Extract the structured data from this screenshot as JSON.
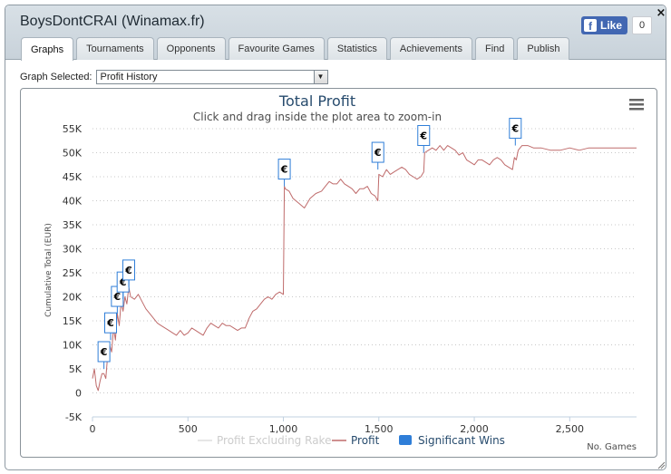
{
  "window": {
    "title": "BoysDontCRAI (Winamax.fr)",
    "close_symbol": "×"
  },
  "facebook": {
    "like_label": "Like",
    "like_count": "0",
    "logo_letter": "f"
  },
  "tabs": [
    {
      "label": "Graphs",
      "active": true
    },
    {
      "label": "Tournaments",
      "active": false
    },
    {
      "label": "Opponents",
      "active": false
    },
    {
      "label": "Favourite Games",
      "active": false
    },
    {
      "label": "Statistics",
      "active": false
    },
    {
      "label": "Achievements",
      "active": false
    },
    {
      "label": "Find",
      "active": false
    },
    {
      "label": "Publish",
      "active": false
    }
  ],
  "graph_selector": {
    "label": "Graph Selected:",
    "value": "Profit History"
  },
  "chart_data": {
    "type": "line",
    "title": "Total Profit",
    "subtitle": "Click and drag inside the plot area to zoom-in",
    "ylabel": "Cumulative Total (EUR)",
    "xlabel": "No. Games",
    "xlim": [
      0,
      2850
    ],
    "ylim": [
      -5000,
      55000
    ],
    "x_ticks": [
      "0",
      "500",
      "1,000",
      "1,500",
      "2,000",
      "2,500"
    ],
    "y_ticks": [
      "-5K",
      "0",
      "5K",
      "10K",
      "15K",
      "20K",
      "25K",
      "30K",
      "35K",
      "40K",
      "45K",
      "50K",
      "55K"
    ],
    "grid": true,
    "legend_position": "bottom",
    "legend": [
      {
        "name": "Profit Excluding Rake",
        "color": "#dddddd"
      },
      {
        "name": "Profit",
        "color": "#bf6b6b"
      },
      {
        "name": "Significant Wins",
        "color": "#2f7ed8"
      }
    ],
    "series": [
      {
        "name": "Profit",
        "color": "#bf6b6b",
        "x": [
          0,
          10,
          20,
          30,
          40,
          50,
          60,
          70,
          80,
          90,
          100,
          110,
          120,
          130,
          140,
          150,
          160,
          170,
          180,
          190,
          200,
          220,
          240,
          260,
          280,
          300,
          320,
          340,
          360,
          380,
          400,
          420,
          440,
          460,
          480,
          500,
          520,
          540,
          560,
          580,
          600,
          620,
          640,
          660,
          680,
          700,
          720,
          740,
          760,
          780,
          800,
          820,
          840,
          860,
          880,
          900,
          920,
          940,
          960,
          980,
          1000,
          1005,
          1010,
          1030,
          1050,
          1080,
          1110,
          1140,
          1170,
          1200,
          1220,
          1240,
          1260,
          1280,
          1300,
          1320,
          1340,
          1360,
          1380,
          1400,
          1420,
          1440,
          1460,
          1480,
          1495,
          1500,
          1520,
          1540,
          1560,
          1580,
          1600,
          1620,
          1640,
          1660,
          1680,
          1700,
          1720,
          1735,
          1740,
          1760,
          1780,
          1800,
          1820,
          1840,
          1860,
          1880,
          1900,
          1920,
          1940,
          1960,
          1980,
          2000,
          2020,
          2040,
          2060,
          2080,
          2100,
          2120,
          2140,
          2160,
          2180,
          2200,
          2210,
          2220,
          2230,
          2250,
          2280,
          2310,
          2350,
          2400,
          2450,
          2500,
          2550,
          2600,
          2650,
          2700,
          2750,
          2800,
          2850
        ],
        "y": [
          3000,
          5000,
          1500,
          500,
          2500,
          4000,
          4000,
          3000,
          8000,
          10000,
          8500,
          13500,
          11000,
          16500,
          14000,
          19000,
          17000,
          20000,
          18500,
          22000,
          20000,
          19500,
          20500,
          19000,
          17500,
          16500,
          15500,
          14500,
          14000,
          13500,
          13000,
          12500,
          12000,
          13000,
          12000,
          12500,
          13500,
          13000,
          12500,
          12000,
          13500,
          14500,
          14000,
          13500,
          14500,
          14000,
          14000,
          13500,
          13000,
          13500,
          13500,
          15500,
          17000,
          17500,
          18500,
          19500,
          20000,
          19500,
          20500,
          21000,
          20500,
          43000,
          42500,
          42000,
          40500,
          39500,
          38500,
          40500,
          41500,
          42000,
          43000,
          44000,
          43500,
          43500,
          44500,
          43500,
          43000,
          42500,
          41500,
          42500,
          42500,
          43000,
          41500,
          41000,
          40000,
          45500,
          45000,
          46500,
          45500,
          46000,
          46500,
          47000,
          46500,
          45500,
          45000,
          44500,
          45000,
          46000,
          50000,
          50500,
          51000,
          50500,
          51500,
          50500,
          51500,
          51000,
          50500,
          49500,
          50000,
          48500,
          48000,
          47500,
          48500,
          48500,
          48000,
          47500,
          48500,
          49000,
          48500,
          47500,
          47000,
          46500,
          49000,
          48500,
          50500,
          51500,
          51500,
          51000,
          51000,
          50500,
          50500,
          51000,
          50500,
          51000,
          51000,
          51000,
          51000,
          51000,
          51000
        ]
      }
    ],
    "significant_wins": [
      {
        "x": 60,
        "y": 5000
      },
      {
        "x": 95,
        "y": 11000
      },
      {
        "x": 130,
        "y": 16500
      },
      {
        "x": 160,
        "y": 19500
      },
      {
        "x": 190,
        "y": 22000
      },
      {
        "x": 1005,
        "y": 43000
      },
      {
        "x": 1495,
        "y": 46500
      },
      {
        "x": 1735,
        "y": 50000
      },
      {
        "x": 2215,
        "y": 51500
      }
    ]
  }
}
